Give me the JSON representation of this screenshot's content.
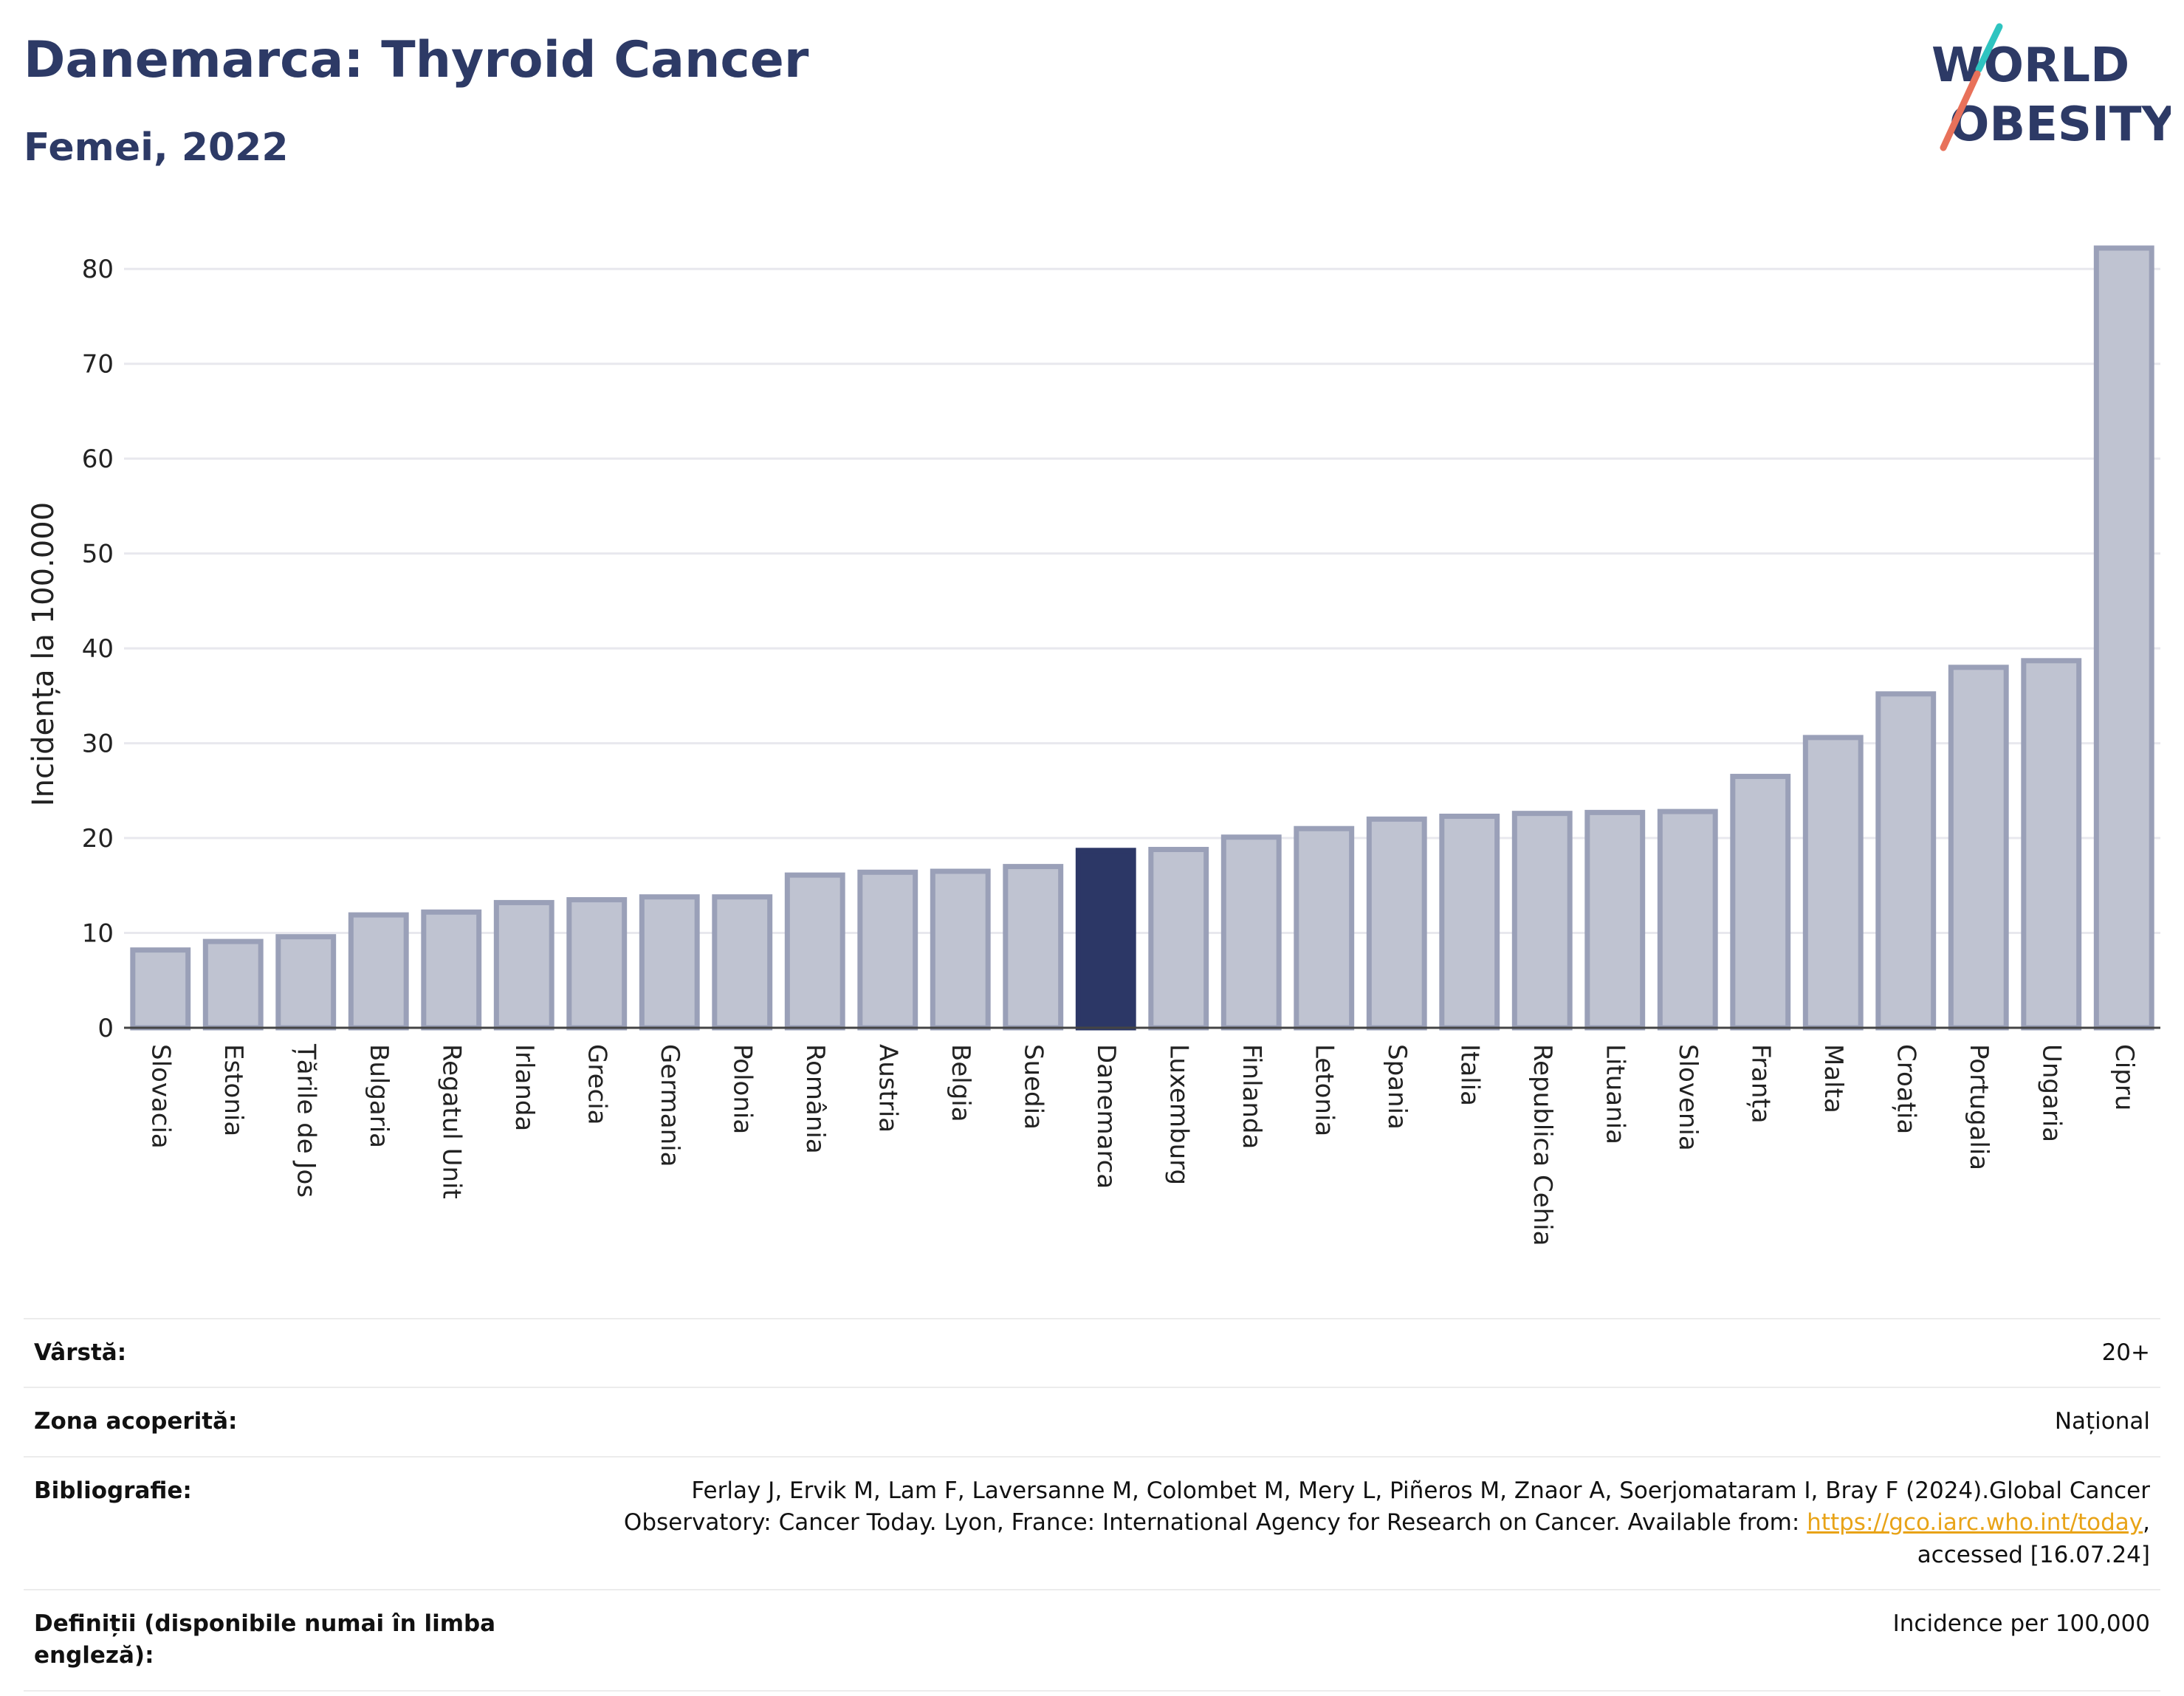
{
  "header": {
    "title": "Danemarca: Thyroid Cancer",
    "subtitle": "Femei, 2022"
  },
  "logo": {
    "line1": "WORLD",
    "line2": "OBESITY",
    "accent_colors": [
      "#2ec4c0",
      "#e8715a"
    ]
  },
  "colors": {
    "bar": "#bfc3d1",
    "bar_edge": "#9aa0b8",
    "highlight": "#2c3766",
    "text": "#2d3a66"
  },
  "chart_data": {
    "type": "bar",
    "title": "Danemarca: Thyroid Cancer",
    "subtitle": "Femei, 2022",
    "xlabel": "",
    "ylabel": "Incidența la 100.000",
    "ylim": [
      0,
      85
    ],
    "yticks": [
      0,
      10,
      20,
      30,
      40,
      50,
      60,
      70,
      80
    ],
    "grid": true,
    "highlight": "Danemarca",
    "categories": [
      "Slovacia",
      "Estonia",
      "Țările de Jos",
      "Bulgaria",
      "Regatul Unit",
      "Irlanda",
      "Grecia",
      "Germania",
      "Polonia",
      "România",
      "Austria",
      "Belgia",
      "Suedia",
      "Danemarca",
      "Luxemburg",
      "Finlanda",
      "Letonia",
      "Spania",
      "Italia",
      "Republica Cehia",
      "Lituania",
      "Slovenia",
      "Franța",
      "Malta",
      "Croația",
      "Portugalia",
      "Ungaria",
      "Cipru"
    ],
    "values": [
      8.2,
      9.1,
      9.6,
      11.9,
      12.2,
      13.2,
      13.5,
      13.8,
      13.8,
      16.1,
      16.4,
      16.5,
      17.0,
      18.7,
      18.8,
      20.1,
      21.0,
      22.0,
      22.3,
      22.6,
      22.7,
      22.8,
      26.5,
      30.6,
      35.2,
      38.0,
      38.7,
      82.2
    ]
  },
  "info": {
    "age_label": "Vârstă:",
    "age_value": "20+",
    "area_label": "Zona acoperită:",
    "area_value": "Național",
    "bib_label": "Bibliografie:",
    "bib_text": "Ferlay J, Ervik M, Lam F, Laversanne M, Colombet M, Mery L, Piñeros M, Znaor A, Soerjomataram I, Bray F (2024).Global Cancer Observatory: Cancer Today. Lyon, France: International Agency for Research on Cancer. Available from:",
    "bib_link": "https://gco.iarc.who.int/today",
    "bib_suffix": ", accessed [16.07.24]",
    "def_label": "Definiții (disponibile numai în limba engleză):",
    "def_value": "Incidence per 100,000"
  }
}
